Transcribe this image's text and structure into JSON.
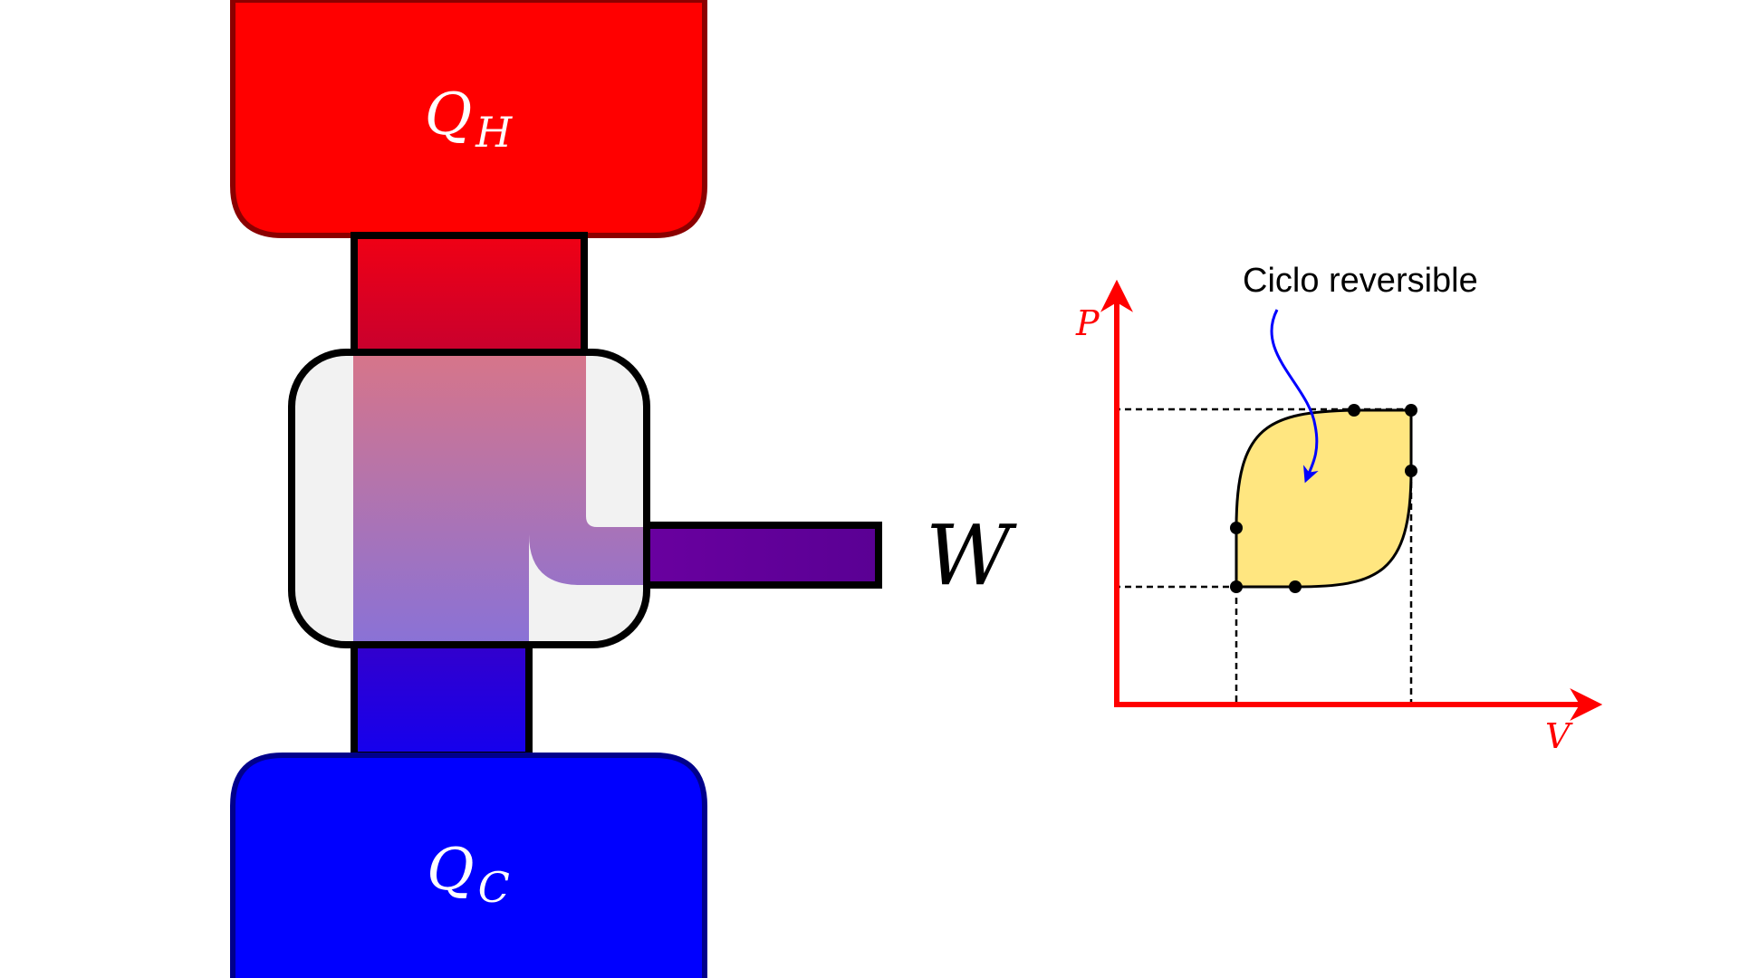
{
  "engine": {
    "hot_reservoir": {
      "symbol": "Q",
      "subscript": "H",
      "fill": "#ff0000",
      "stroke": "#8b0000"
    },
    "cold_reservoir": {
      "symbol": "Q",
      "subscript": "C",
      "fill": "#0000ff",
      "stroke": "#00008b"
    },
    "work": {
      "symbol": "W",
      "color": "#5e0094"
    },
    "hot_pipe_color": "#e8001a",
    "cold_pipe_color": "#2a00d6",
    "box_fill": "#f2f2f2"
  },
  "pv_diagram": {
    "axis_color": "#ff0000",
    "y_axis_label": "P",
    "x_axis_label": "V",
    "cycle_fill": "#ffe680",
    "annotation": {
      "text": "Ciclo reversible",
      "arrow_color": "#0000ff"
    }
  }
}
